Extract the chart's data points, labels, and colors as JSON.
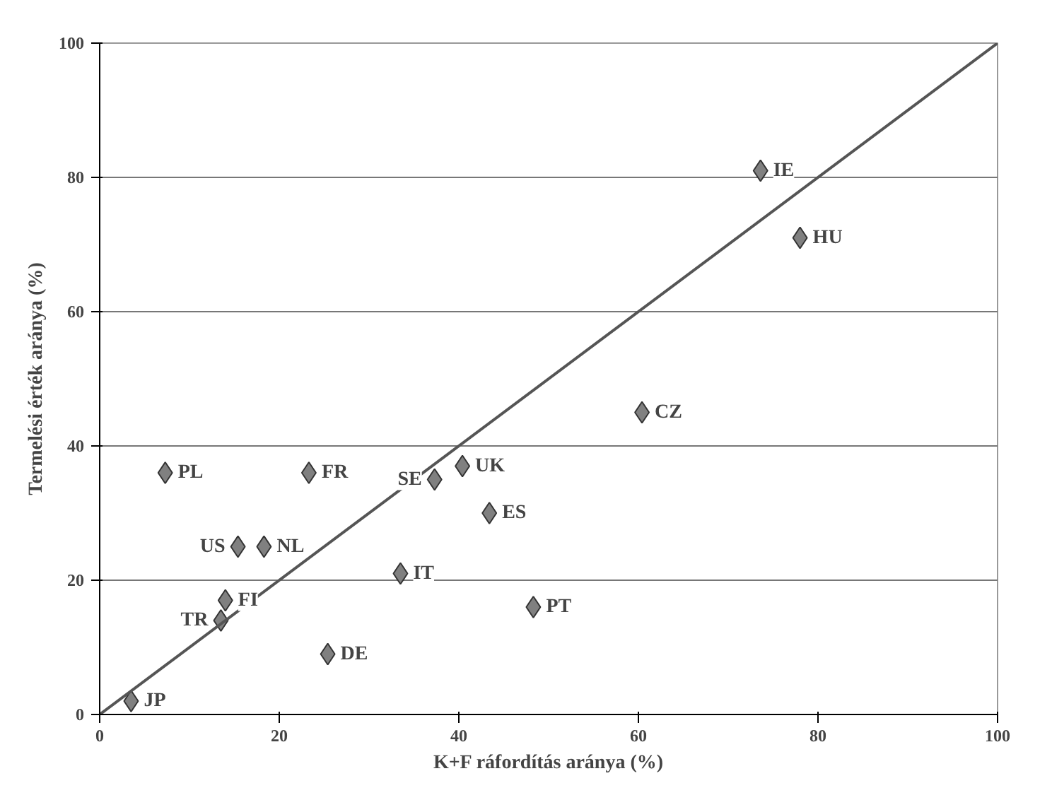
{
  "chart_data": {
    "type": "scatter",
    "xlabel": "K+F ráfordítás aránya (%)",
    "ylabel": "Termelési érték aránya (%)",
    "xlim": [
      0,
      100
    ],
    "ylim": [
      0,
      100
    ],
    "xticks": [
      0,
      20,
      40,
      60,
      80,
      100
    ],
    "yticks": [
      0,
      20,
      40,
      60,
      80,
      100
    ],
    "grid": "y",
    "series": [
      {
        "marker": "diamond",
        "color": "#808080",
        "x": [
          3.5,
          13.5,
          14,
          15.4,
          18.3,
          7.3,
          23.3,
          25.4,
          33.5,
          37.3,
          40.4,
          43.4,
          48.3,
          60.4,
          73.6,
          78
        ],
        "values": [
          2,
          14,
          17,
          25,
          25,
          36,
          36,
          9,
          21,
          35,
          37,
          30,
          16,
          45,
          81,
          71
        ]
      },
      {
        "type": "line",
        "marker": "none",
        "color": "#555555",
        "x": [
          0,
          100
        ],
        "values": [
          0,
          100
        ]
      }
    ],
    "annotations": [
      {
        "text": "JP",
        "x": 3.5,
        "y": 2
      },
      {
        "text": "TR",
        "x": 13.5,
        "y": 14
      },
      {
        "text": "FI",
        "x": 14,
        "y": 17
      },
      {
        "text": "US",
        "x": 15.4,
        "y": 25
      },
      {
        "text": "NL",
        "x": 18.3,
        "y": 25
      },
      {
        "text": "PL",
        "x": 7.3,
        "y": 36
      },
      {
        "text": "FR",
        "x": 23.3,
        "y": 36
      },
      {
        "text": "DE",
        "x": 25.4,
        "y": 9
      },
      {
        "text": "IT",
        "x": 33.5,
        "y": 21
      },
      {
        "text": "SE",
        "x": 37.3,
        "y": 35
      },
      {
        "text": "UK",
        "x": 40.4,
        "y": 37
      },
      {
        "text": "ES",
        "x": 43.4,
        "y": 30
      },
      {
        "text": "PT",
        "x": 48.3,
        "y": 16
      },
      {
        "text": "CZ",
        "x": 60.4,
        "y": 45
      },
      {
        "text": "IE",
        "x": 73.6,
        "y": 81
      },
      {
        "text": "HU",
        "x": 78,
        "y": 71
      }
    ]
  }
}
